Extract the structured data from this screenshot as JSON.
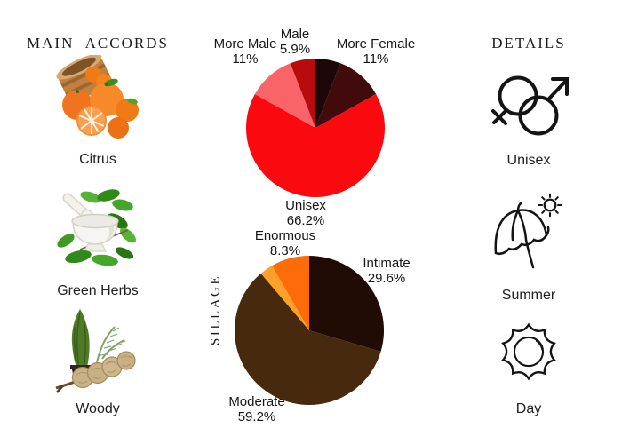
{
  "page": {
    "background": "#ffffff",
    "text_color": "#181818"
  },
  "accords": {
    "heading": "MAIN ACCORDS",
    "items": [
      {
        "label": "Citrus",
        "icon": "citrus-image"
      },
      {
        "label": "Green Herbs",
        "icon": "green-herbs-image"
      },
      {
        "label": "Woody",
        "icon": "woody-image"
      }
    ]
  },
  "details": {
    "heading": "DETAILS",
    "items": [
      {
        "label": "Unisex",
        "icon": "unisex-gender-icon"
      },
      {
        "label": "Summer",
        "icon": "summer-umbrella-sun-icon"
      },
      {
        "label": "Day",
        "icon": "day-sun-icon"
      }
    ]
  },
  "chart_data": [
    {
      "type": "pie",
      "name": "gender-distribution",
      "direction": "clockwise",
      "start": "top",
      "legend": "none",
      "slices": [
        {
          "label": "",
          "pct_label": "",
          "value": 5.9,
          "color": "#1d0708",
          "label_visible": false
        },
        {
          "label": "More Female",
          "pct_label": "11%",
          "value": 11,
          "color": "#420b0b",
          "label_visible": true
        },
        {
          "label": "Unisex",
          "pct_label": "66.2%",
          "value": 66.2,
          "color": "#fa0a0f",
          "label_visible": true
        },
        {
          "label": "More Male",
          "pct_label": "11%",
          "value": 11,
          "color": "#f96468",
          "label_visible": true
        },
        {
          "label": "Male",
          "pct_label": "5.9%",
          "value": 5.9,
          "color": "#b70b0e",
          "label_visible": true
        }
      ]
    },
    {
      "type": "pie",
      "name": "sillage-distribution",
      "axis_label": "SILLAGE",
      "direction": "clockwise",
      "start": "top",
      "legend": "none",
      "slices": [
        {
          "label": "Intimate",
          "pct_label": "29.6%",
          "value": 29.6,
          "color": "#200c04",
          "label_visible": true
        },
        {
          "label": "Moderate",
          "pct_label": "59.2%",
          "value": 59.2,
          "color": "#47290e",
          "label_visible": true
        },
        {
          "label": "",
          "pct_label": "",
          "value": 2.9,
          "color": "#fda028",
          "label_visible": false
        },
        {
          "label": "Enormous",
          "pct_label": "8.3%",
          "value": 8.3,
          "color": "#fd6c08",
          "label_visible": true
        }
      ]
    }
  ]
}
